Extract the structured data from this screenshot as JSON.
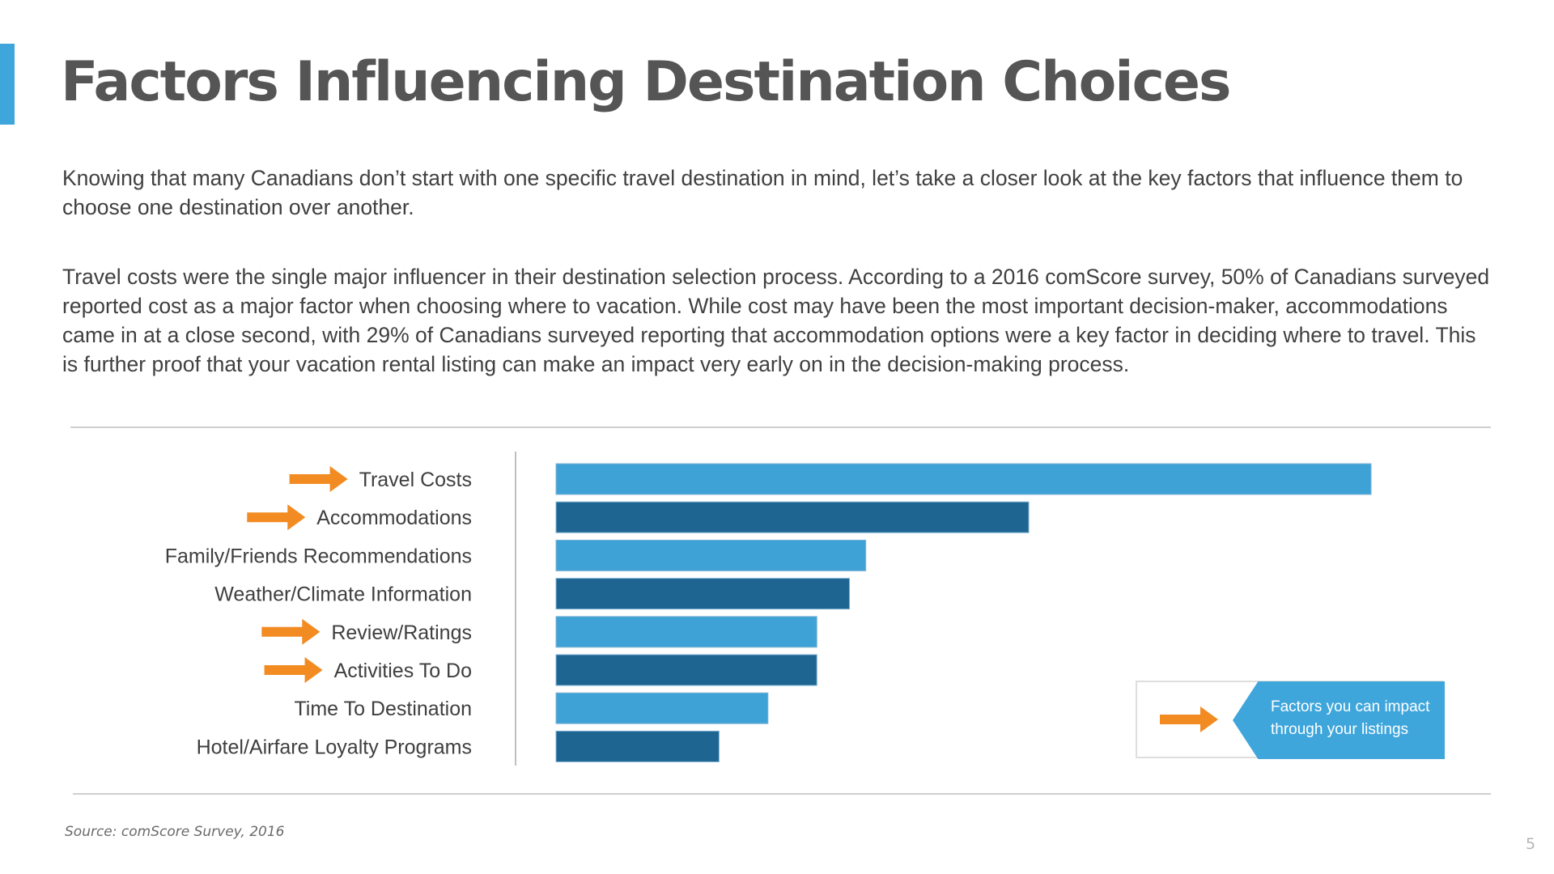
{
  "slide": {
    "title": "Factors Influencing Destination Choices",
    "paragraph1": "Knowing that many Canadians don’t start with one specific travel destination in mind, let’s take a closer look at the key factors that influence them to choose one destination over another.",
    "paragraph2": "Travel costs were the single major influencer in their destination selection process. According to a 2016 comScore survey, 50% of Canadians surveyed reported cost as a major factor when choosing where to vacation. While cost may have been the most important decision-maker, accommodations came in at a close second, with 29% of Canadians surveyed reporting that accommodation options were a key factor in deciding where to travel. This is further proof that your vacation rental listing can make an impact very early on in the decision-making process.",
    "source": "Source: comScore Survey, 2016",
    "page_number": "5",
    "accent_color": "#3fa6dc"
  },
  "legend": {
    "text": "Factors you can impact through your listings",
    "arrow_icon": "orange-arrow-icon",
    "arrow_color": "#f28b22",
    "tag_color": "#3fa6dc"
  },
  "chart_data": {
    "type": "bar",
    "orientation": "horizontal",
    "categories": [
      "Travel Costs",
      "Accommodations",
      "Family/Friends Recommendations",
      "Weather/Climate Information",
      "Review/Ratings",
      "Activities To Do",
      "Time To Destination",
      "Hotel/Airfare Loyalty Programs"
    ],
    "values": [
      50,
      29,
      19,
      18,
      16,
      16,
      13,
      10
    ],
    "value_unit": "%",
    "highlighted": [
      true,
      true,
      false,
      false,
      true,
      true,
      false,
      false
    ],
    "colors": [
      "#3fa2d6",
      "#1e6591"
    ],
    "xlim": [
      0,
      50
    ],
    "grid": false,
    "title": "",
    "xlabel": "",
    "ylabel": ""
  }
}
